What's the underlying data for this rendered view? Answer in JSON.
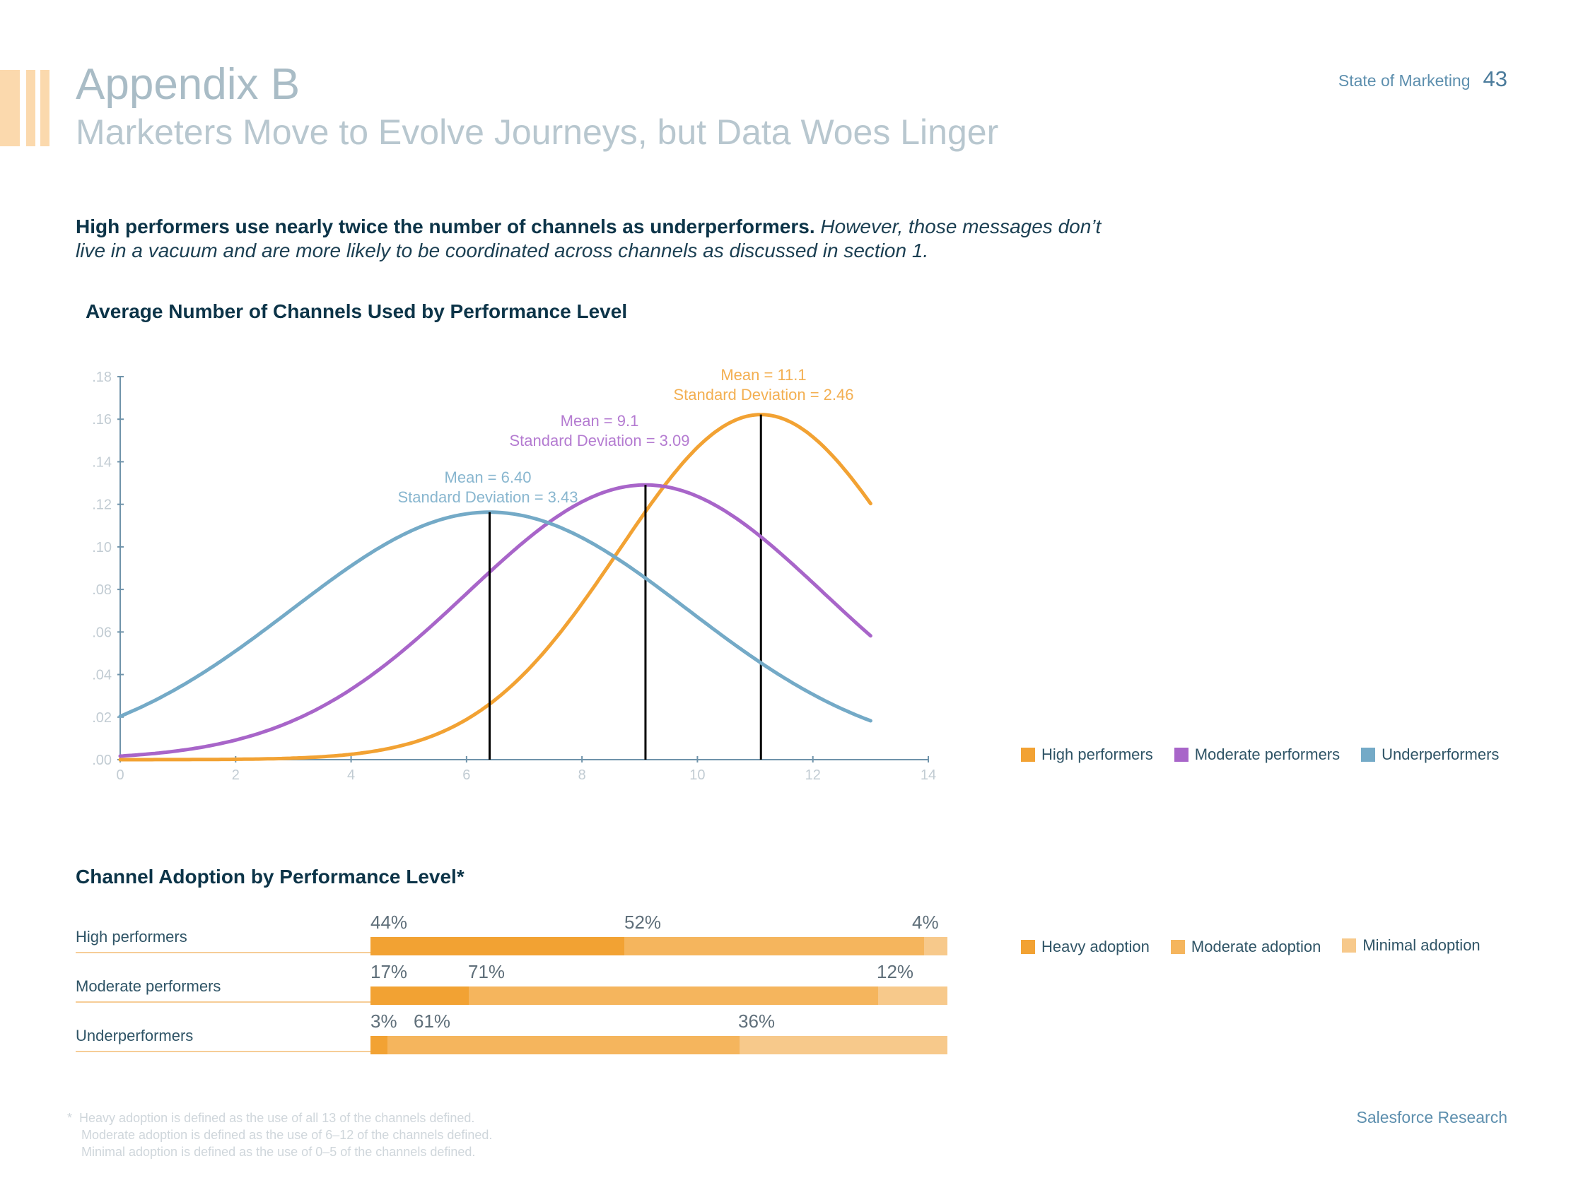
{
  "header": {
    "section": "Appendix B",
    "title": "Marketers Move to Evolve Journeys, but Data Woes Linger",
    "brand": "State of Marketing",
    "page_number": "43"
  },
  "intro": {
    "bold": "High performers use nearly twice the number of channels as underperformers.",
    "italic": "However, those messages don’t live in a vacuum and are more likely to be coordinated across channels as discussed in section 1."
  },
  "colors": {
    "high": "#f2a233",
    "moderate": "#a865c9",
    "under": "#74aac7",
    "heavy": "#f2a233",
    "moderate_adoption": "#f5b55d",
    "minimal": "#f7c98b",
    "deco": "#fbd9ad"
  },
  "chart_data": [
    {
      "type": "line",
      "title": "Average Number of Channels Used by Performance Level",
      "xlabel": "",
      "ylabel": "",
      "xlim": [
        0,
        14
      ],
      "ylim": [
        0,
        0.18
      ],
      "x_ticks": [
        "0",
        "2",
        "4",
        "6",
        "8",
        "10",
        "12",
        "14"
      ],
      "y_ticks": [
        ".00",
        ".02",
        ".04",
        ".06",
        ".08",
        ".10",
        ".12",
        ".14",
        ".16",
        ".18"
      ],
      "grid": false,
      "legend_position": "right",
      "series": [
        {
          "name": "High performers",
          "key": "high",
          "mean": 11.1,
          "sd": 2.46,
          "annotation": [
            "Mean = 11.1",
            "Standard Deviation = 2.46"
          ],
          "x": [
            0,
            1,
            2,
            3,
            4,
            5,
            6,
            7,
            8,
            9,
            10,
            11,
            12,
            13
          ],
          "y": [
            0.0,
            0.0,
            0.001,
            0.001,
            0.002,
            0.006,
            0.017,
            0.038,
            0.07,
            0.105,
            0.147,
            0.162,
            0.15,
            0.12
          ]
        },
        {
          "name": "Moderate performers",
          "key": "moderate",
          "mean": 9.1,
          "sd": 3.09,
          "annotation": [
            "Mean = 9.1",
            "Standard Deviation = 3.09"
          ],
          "x": [
            0,
            1,
            2,
            3,
            4,
            5,
            6,
            7,
            8,
            9,
            10,
            11,
            12,
            13
          ],
          "y": [
            0.002,
            0.004,
            0.009,
            0.017,
            0.032,
            0.053,
            0.078,
            0.102,
            0.121,
            0.129,
            0.124,
            0.106,
            0.083,
            0.059
          ]
        },
        {
          "name": "Underperformers",
          "key": "under",
          "mean": 6.4,
          "sd": 3.43,
          "annotation": [
            "Mean = 6.40",
            "Standard Deviation = 3.43"
          ],
          "x": [
            0,
            1,
            2,
            3,
            4,
            5,
            6,
            7,
            8,
            9,
            10,
            11,
            12,
            13
          ],
          "y": [
            0.02,
            0.034,
            0.051,
            0.07,
            0.09,
            0.106,
            0.115,
            0.114,
            0.103,
            0.086,
            0.066,
            0.046,
            0.03,
            0.019
          ]
        }
      ]
    },
    {
      "type": "bar",
      "orientation": "horizontal",
      "stacked": true,
      "title": "Channel Adoption by Performance Level*",
      "categories": [
        "High performers",
        "Moderate performers",
        "Underperformers"
      ],
      "value_labels": [
        [
          "44%",
          "52%",
          "4%"
        ],
        [
          "17%",
          "71%",
          "12%"
        ],
        [
          "3%",
          "61%",
          "36%"
        ]
      ],
      "series": [
        {
          "name": "Heavy adoption",
          "key": "heavy",
          "values": [
            44,
            17,
            3
          ]
        },
        {
          "name": "Moderate adoption",
          "key": "moderate_adoption",
          "values": [
            52,
            71,
            61
          ]
        },
        {
          "name": "Minimal adoption",
          "key": "minimal",
          "values": [
            4,
            12,
            36
          ]
        }
      ],
      "legend_position": "right"
    }
  ],
  "footnote": {
    "marker": "*",
    "lines": [
      "Heavy adoption is defined as the use of all 13 of the channels defined.",
      "Moderate adoption is defined as the use of 6–12 of the channels defined.",
      "Minimal adoption is defined as the use of 0–5 of the channels defined."
    ]
  },
  "source": "Salesforce Research"
}
